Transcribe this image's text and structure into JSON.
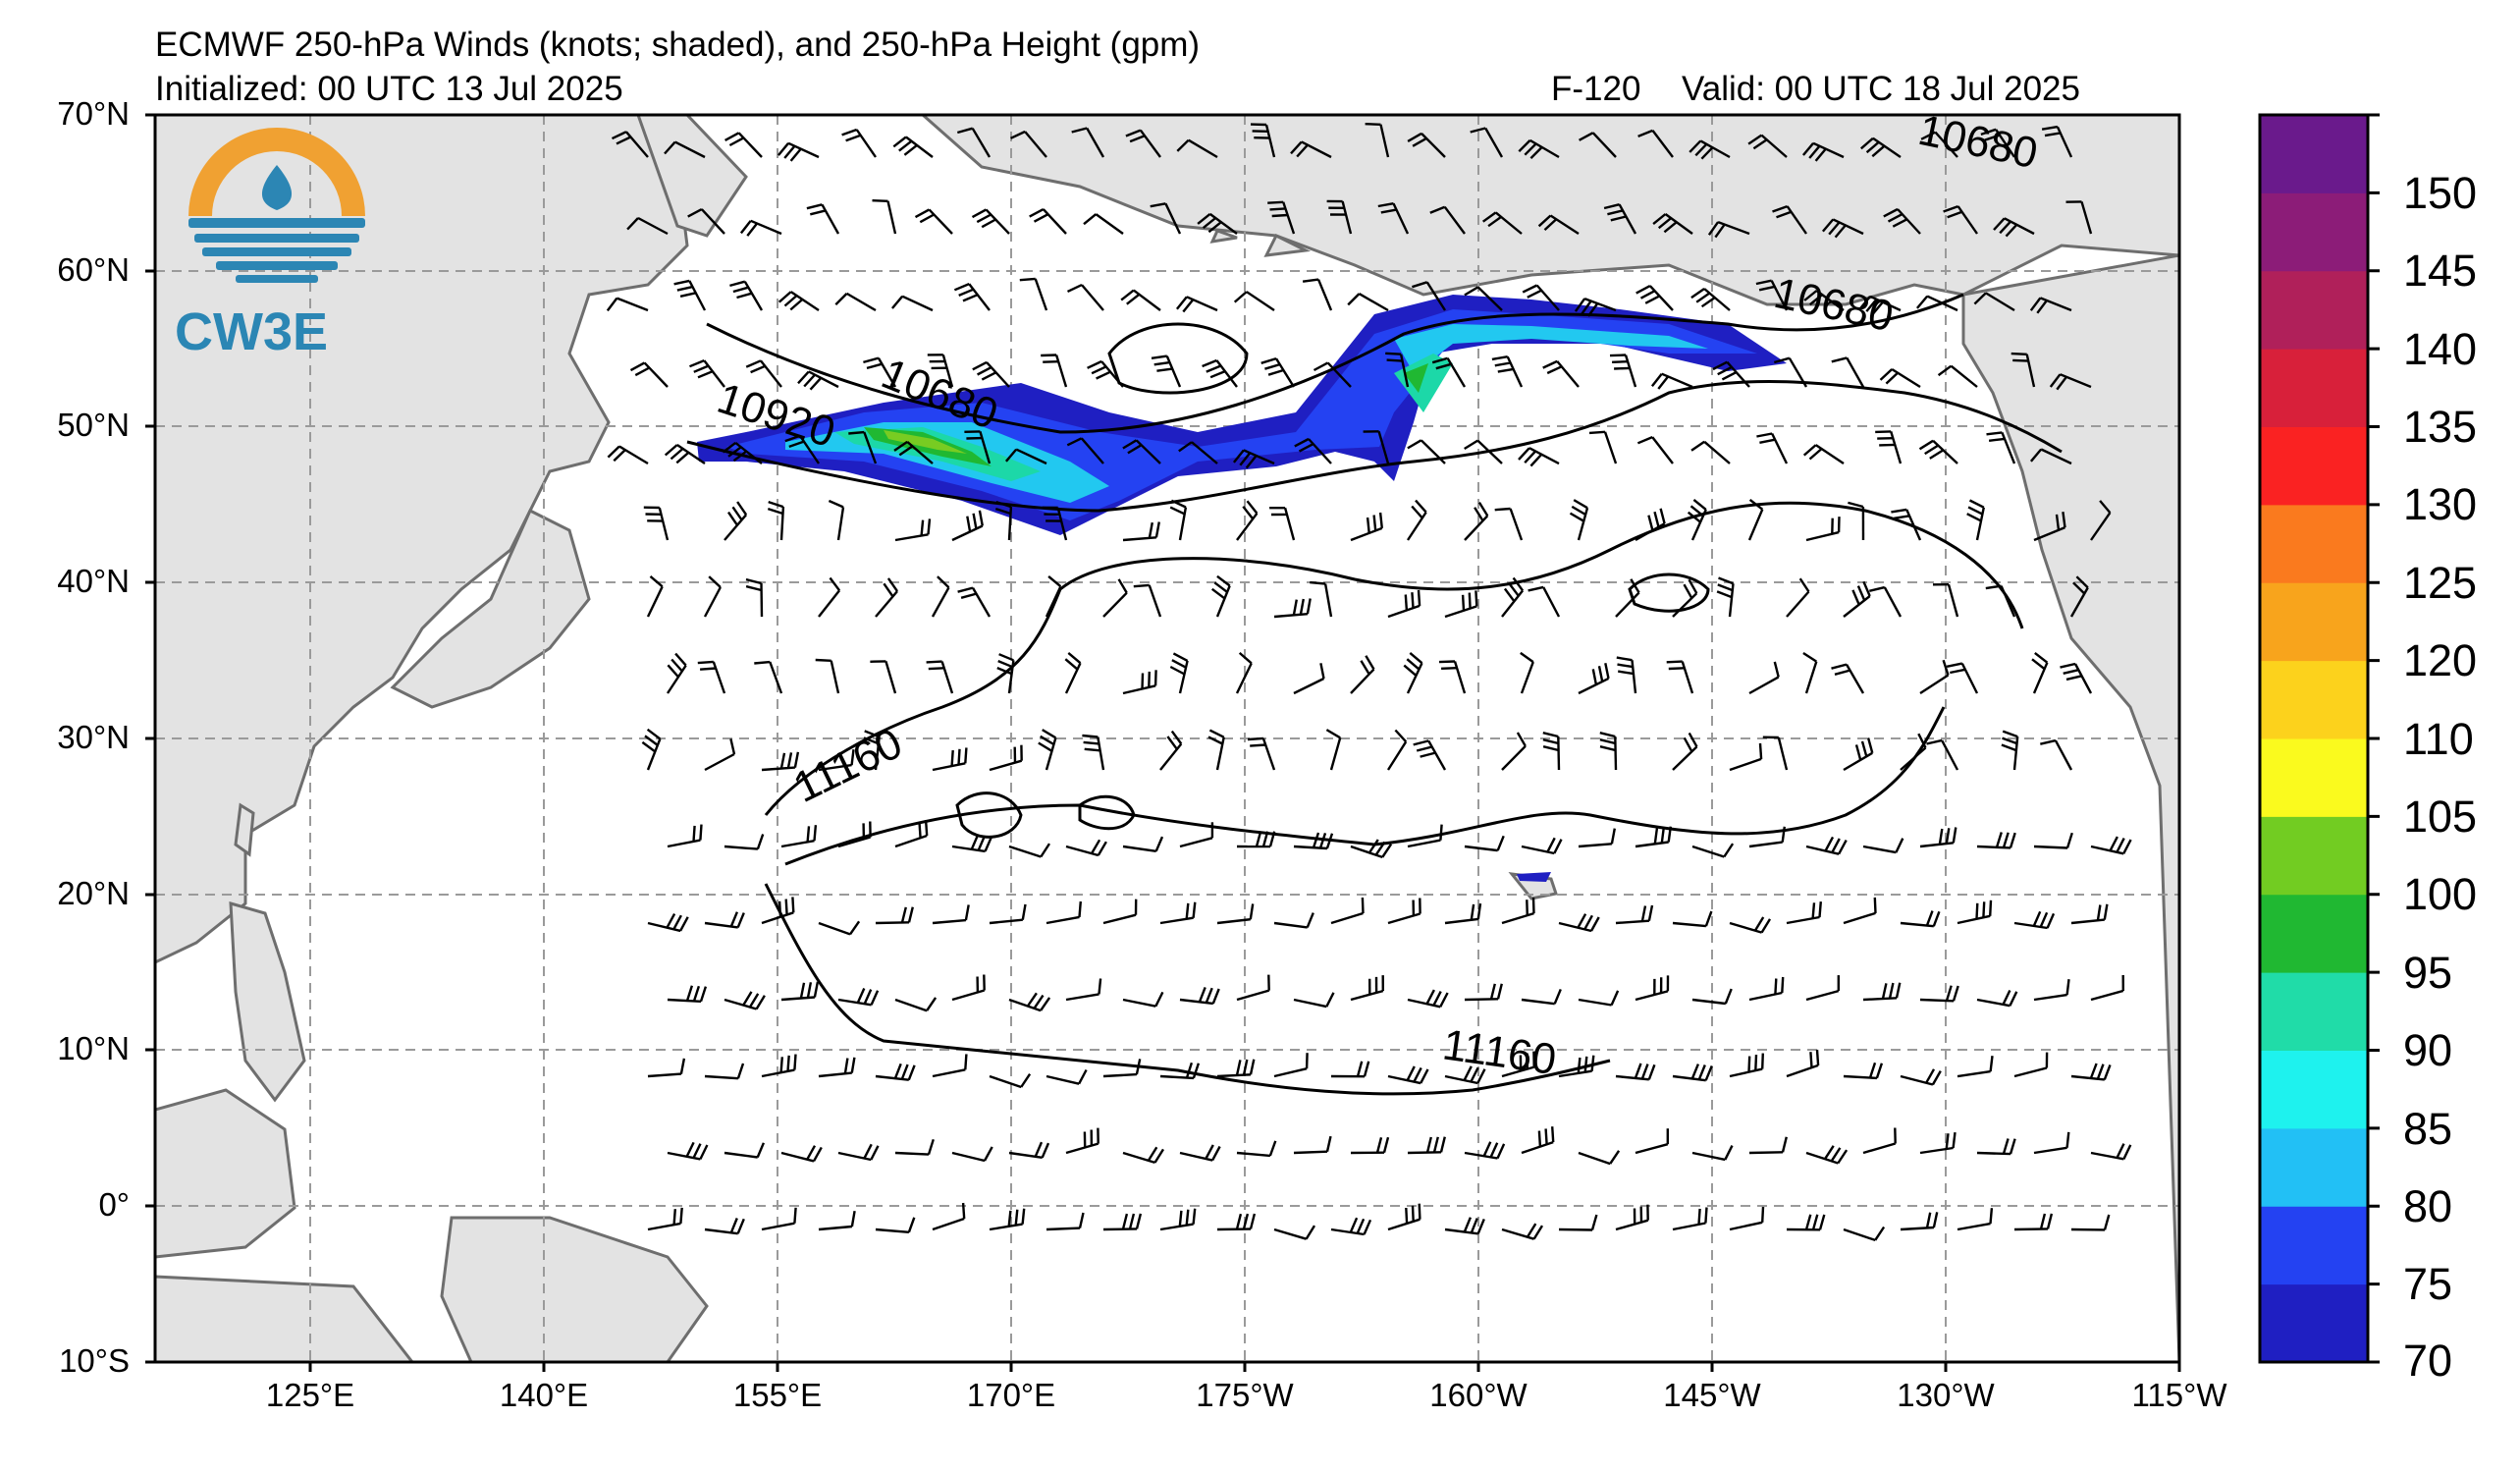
{
  "title": {
    "main": "ECMWF 250-hPa Winds (knots; shaded), and 250-hPa Height (gpm)",
    "initialized": "Initialized: 00 UTC 13 Jul 2025",
    "forecast": "F-120",
    "valid": "Valid: 00 UTC 18 Jul 2025"
  },
  "logo": {
    "text": "CW3E",
    "icon": "water-drop-logo-icon",
    "colors": {
      "ring": "#f0a132",
      "stripes": "#2c86b4",
      "text": "#2b86b4"
    }
  },
  "map": {
    "projection": "equirectangular",
    "extent": {
      "lon_west": "115°E",
      "lon_east": "115°W",
      "lat_south": "10°S",
      "lat_north": "70°N"
    },
    "lat_labels": [
      "70°N",
      "60°N",
      "50°N",
      "40°N",
      "30°N",
      "20°N",
      "10°N",
      "0°",
      "10°S"
    ],
    "lon_labels": [
      "125°E",
      "140°E",
      "155°E",
      "170°E",
      "175°W",
      "160°W",
      "145°W",
      "130°W",
      "115°W"
    ],
    "gridlines": true,
    "colors": {
      "land": "#e3e3e3",
      "ocean": "#ffffff",
      "coast": "#6e6e6e",
      "grid": "#9a9a9a"
    }
  },
  "contours": {
    "units": "gpm",
    "labels": [
      "10680",
      "10680",
      "10680",
      "10920",
      "11160",
      "11160"
    ]
  },
  "jet": {
    "colors": [
      "#1f1fc2",
      "#2442f2",
      "#22c8f0",
      "#1cd8a8",
      "#20b832",
      "#78cc22"
    ]
  },
  "colorbar": {
    "ticks": [
      "150",
      "145",
      "140",
      "135",
      "130",
      "125",
      "120",
      "110",
      "105",
      "100",
      "95",
      "90",
      "85",
      "80",
      "75",
      "70"
    ],
    "bins": [
      {
        "from": 70,
        "to": 75,
        "color": "#1f1fc2"
      },
      {
        "from": 75,
        "to": 80,
        "color": "#2442f2"
      },
      {
        "from": 80,
        "to": 85,
        "color": "#22c0f5"
      },
      {
        "from": 85,
        "to": 90,
        "color": "#1ef2ee"
      },
      {
        "from": 90,
        "to": 95,
        "color": "#20dca8"
      },
      {
        "from": 95,
        "to": 100,
        "color": "#20b832"
      },
      {
        "from": 100,
        "to": 105,
        "color": "#72cc22"
      },
      {
        "from": 105,
        "to": 110,
        "color": "#fafa1e"
      },
      {
        "from": 110,
        "to": 120,
        "color": "#fcd21c"
      },
      {
        "from": 120,
        "to": 125,
        "color": "#f8a41c"
      },
      {
        "from": 125,
        "to": 130,
        "color": "#fa7a1e"
      },
      {
        "from": 130,
        "to": 135,
        "color": "#fa2222"
      },
      {
        "from": 135,
        "to": 140,
        "color": "#d8203a"
      },
      {
        "from": 140,
        "to": 145,
        "color": "#b0205a"
      },
      {
        "from": 145,
        "to": 150,
        "color": "#8c1c78"
      },
      {
        "from": 150,
        "to": 155,
        "color": "#6a1a8c"
      }
    ]
  }
}
